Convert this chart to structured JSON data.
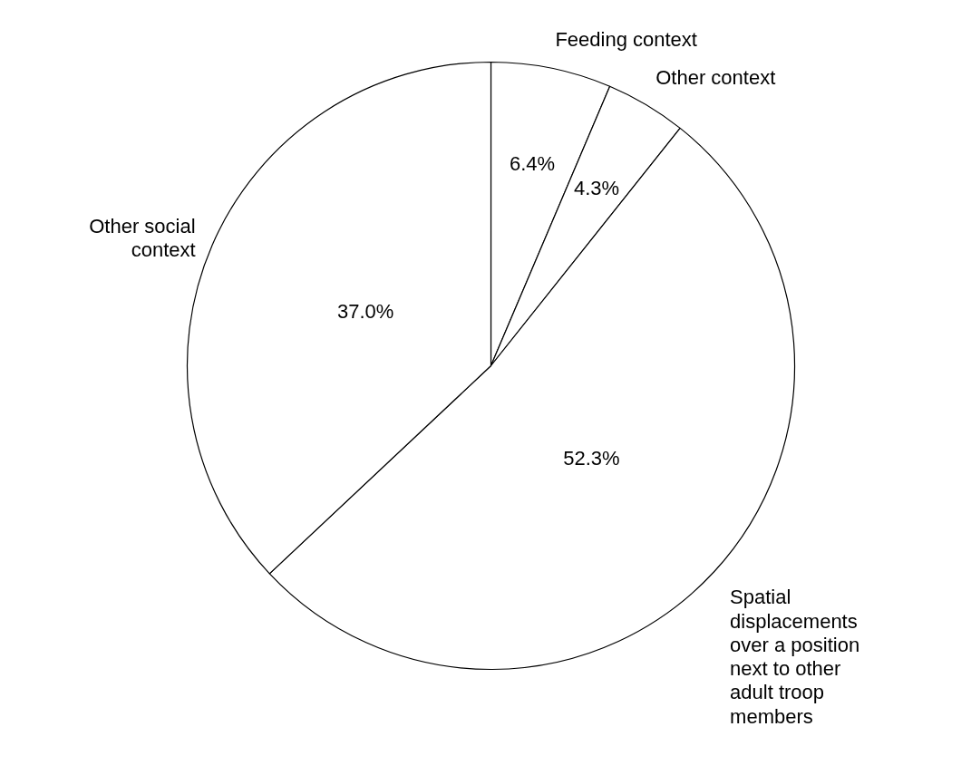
{
  "chart_data": {
    "type": "pie",
    "categories": [
      "Feeding context",
      "Other context",
      "Spatial displacements over a position next to other adult troop members",
      "Other social context"
    ],
    "values": [
      6.4,
      4.3,
      52.3,
      37.0
    ],
    "value_labels": [
      "6.4%",
      "4.3%",
      "52.3%",
      "37.0%"
    ],
    "colors": [
      "#ffffff",
      "#ffffff",
      "#ffffff",
      "#ffffff"
    ]
  }
}
